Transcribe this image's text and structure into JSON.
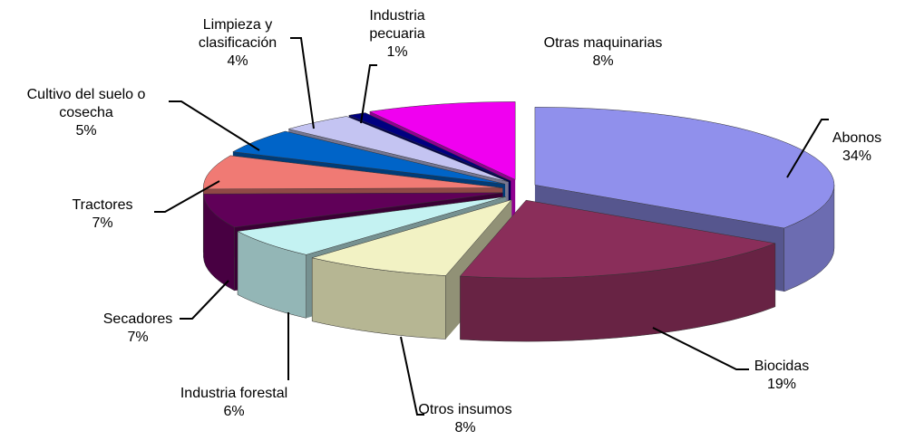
{
  "chart_data": {
    "type": "pie",
    "categories": [
      "Abonos",
      "Biocidas",
      "Otros insumos",
      "Industria forestal",
      "Secadores",
      "Tractores",
      "Cultivo del suelo o cosecha",
      "Limpieza y clasificación",
      "Industria pecuaria",
      "Otras maquinarias"
    ],
    "values": [
      34,
      19,
      8,
      6,
      7,
      7,
      5,
      4,
      1,
      8
    ],
    "value_labels": [
      "34%",
      "19%",
      "8%",
      "6%",
      "7%",
      "7%",
      "5%",
      "4%",
      "1%",
      "8%"
    ],
    "colors": [
      "#9090ec",
      "#8a2e5a",
      "#f2f2c4",
      "#c4f2f2",
      "#600058",
      "#f07a74",
      "#0064c8",
      "#c4c4f2",
      "#000080",
      "#f000f0"
    ]
  }
}
